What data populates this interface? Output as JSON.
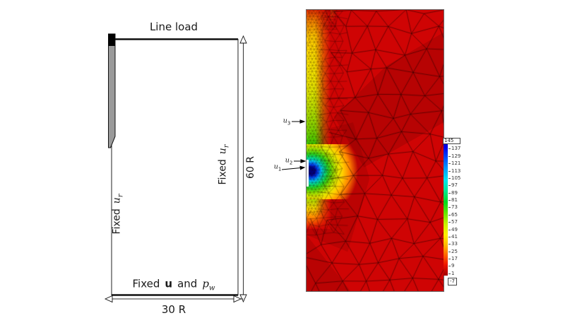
{
  "left_diagram": {
    "top_label": "Line load",
    "left_boundary": {
      "prefix": "Fixed",
      "var": "u",
      "sub": "r"
    },
    "right_boundary": {
      "prefix": "Fixed",
      "var": "u",
      "sub": "r"
    },
    "bottom_boundary": {
      "prefix": "Fixed",
      "vec": "u",
      "conj": "and",
      "scalar": "p",
      "scalar_sub": "w"
    },
    "height_dim": "60 R",
    "width_dim": "30 R"
  },
  "mesh_panel": {
    "annotations": [
      {
        "var": "u",
        "sub": "1"
      },
      {
        "var": "u",
        "sub": "2"
      },
      {
        "var": "u",
        "sub": "3"
      }
    ],
    "colorbar": {
      "max_label": "145",
      "min_label": "-7",
      "ticks": [
        "145",
        "137",
        "129",
        "121",
        "113",
        "105",
        "97",
        "89",
        "81",
        "73",
        "65",
        "57",
        "49",
        "41",
        "33",
        "25",
        "17",
        "9",
        "1"
      ],
      "top_color": "#1414b4",
      "bottom_color": "#a00000"
    },
    "field_low_color": "#cf0404",
    "field_high_color": "#000080"
  }
}
